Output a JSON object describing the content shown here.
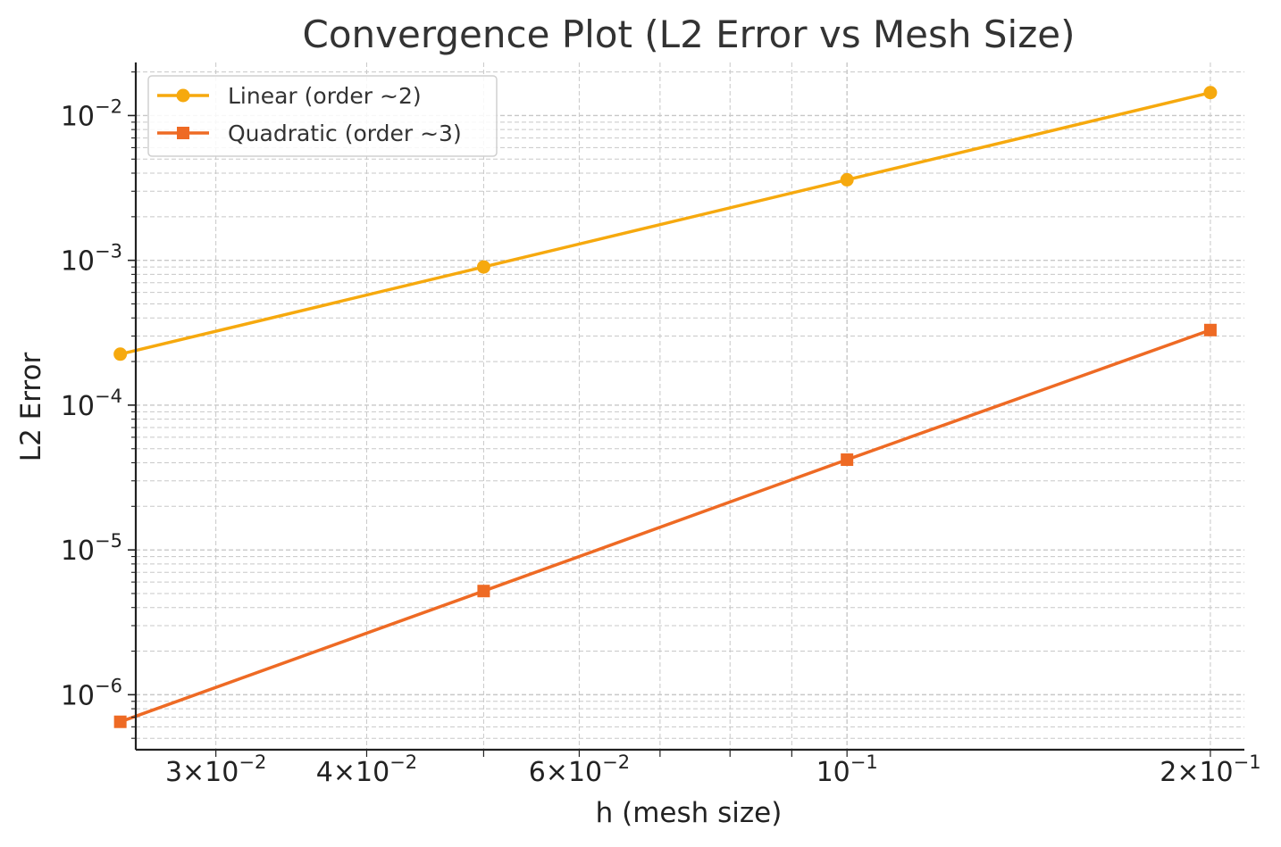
{
  "chart_data": {
    "type": "line",
    "title": "Convergence Plot (L2 Error vs Mesh Size)",
    "xlabel": "h (mesh size)",
    "ylabel": "L2 Error",
    "xscale": "log",
    "yscale": "log",
    "xlim": [
      0.02575,
      0.2134
    ],
    "ylim": [
      4.17e-07,
      0.02325
    ],
    "grid": true,
    "legend_position": "upper-left",
    "x_ticks": [
      {
        "value": 0.03,
        "mantissa": "3",
        "exp": "−2"
      },
      {
        "value": 0.04,
        "mantissa": "4",
        "exp": "−2"
      },
      {
        "value": 0.06,
        "mantissa": "6",
        "exp": "−2"
      },
      {
        "value": 0.1,
        "mantissa": "",
        "exp": "−1"
      },
      {
        "value": 0.2,
        "mantissa": "2",
        "exp": "−1"
      }
    ],
    "y_ticks": [
      {
        "value": 0.01,
        "exp": "−2"
      },
      {
        "value": 0.001,
        "exp": "−3"
      },
      {
        "value": 0.0001,
        "exp": "−4"
      },
      {
        "value": 1e-05,
        "exp": "−5"
      },
      {
        "value": 1e-06,
        "exp": "−6"
      }
    ],
    "x": [
      0.025,
      0.05,
      0.1,
      0.2
    ],
    "series": [
      {
        "name": "Linear (order ~2)",
        "color": "#F6A90E",
        "marker": "circle",
        "values": [
          0.000225,
          0.0009,
          0.0036,
          0.0144
        ]
      },
      {
        "name": "Quadratic (order ~3)",
        "color": "#EE6A24",
        "marker": "square",
        "values": [
          6.5e-07,
          5.2e-06,
          4.2e-05,
          0.00033
        ]
      }
    ]
  }
}
